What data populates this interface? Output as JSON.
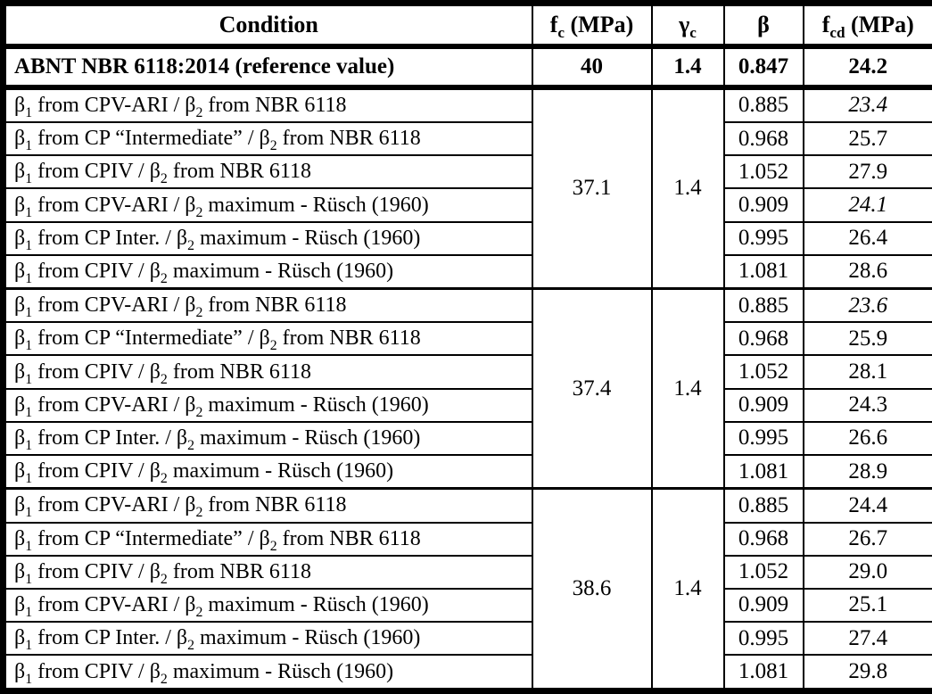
{
  "colors": {
    "border": "#000000",
    "background": "#ffffff",
    "text": "#000000"
  },
  "table": {
    "columns": [
      {
        "id": "condition",
        "parts": [
          {
            "t": "Condition"
          }
        ]
      },
      {
        "id": "fc",
        "parts": [
          {
            "t": "f"
          },
          {
            "sub": "c"
          },
          {
            "t": " (MPa)"
          }
        ]
      },
      {
        "id": "gamma_c",
        "parts": [
          {
            "t": "γ"
          },
          {
            "sub": "c"
          }
        ]
      },
      {
        "id": "beta",
        "parts": [
          {
            "t": "β"
          }
        ]
      },
      {
        "id": "fcd",
        "parts": [
          {
            "t": "f"
          },
          {
            "sub": "cd"
          },
          {
            "t": " (MPa)"
          }
        ]
      }
    ],
    "reference_row": {
      "condition": "ABNT NBR 6118:2014 (reference value)",
      "fc": "40",
      "gamma_c": "1.4",
      "beta": "0.847",
      "fcd": "24.2"
    },
    "groups": [
      {
        "fc": "37.1",
        "gamma_c": "1.4",
        "rows": [
          {
            "condition_parts": [
              {
                "t": "β"
              },
              {
                "sub": "1"
              },
              {
                "t": " from CPV-ARI / β"
              },
              {
                "sub": "2"
              },
              {
                "t": " from NBR 6118"
              }
            ],
            "beta": "0.885",
            "fcd": "23.4",
            "fcd_italic": true
          },
          {
            "condition_parts": [
              {
                "t": "β"
              },
              {
                "sub": "1"
              },
              {
                "t": " from CP “Intermediate” / β"
              },
              {
                "sub": "2"
              },
              {
                "t": " from NBR 6118"
              }
            ],
            "beta": "0.968",
            "fcd": "25.7",
            "fcd_italic": false
          },
          {
            "condition_parts": [
              {
                "t": "β"
              },
              {
                "sub": "1"
              },
              {
                "t": " from CPIV / β"
              },
              {
                "sub": "2"
              },
              {
                "t": " from NBR 6118"
              }
            ],
            "beta": "1.052",
            "fcd": "27.9",
            "fcd_italic": false
          },
          {
            "condition_parts": [
              {
                "t": "β"
              },
              {
                "sub": "1"
              },
              {
                "t": " from CPV-ARI / β"
              },
              {
                "sub": "2"
              },
              {
                "t": " maximum - Rüsch (1960)"
              }
            ],
            "beta": "0.909",
            "fcd": "24.1",
            "fcd_italic": true
          },
          {
            "condition_parts": [
              {
                "t": "β"
              },
              {
                "sub": "1"
              },
              {
                "t": " from CP Inter. / β"
              },
              {
                "sub": "2"
              },
              {
                "t": " maximum - Rüsch (1960)"
              }
            ],
            "beta": "0.995",
            "fcd": "26.4",
            "fcd_italic": false
          },
          {
            "condition_parts": [
              {
                "t": "β"
              },
              {
                "sub": "1"
              },
              {
                "t": " from CPIV / β"
              },
              {
                "sub": "2"
              },
              {
                "t": " maximum - Rüsch (1960)"
              }
            ],
            "beta": "1.081",
            "fcd": "28.6",
            "fcd_italic": false
          }
        ]
      },
      {
        "fc": "37.4",
        "gamma_c": "1.4",
        "rows": [
          {
            "condition_parts": [
              {
                "t": "β"
              },
              {
                "sub": "1"
              },
              {
                "t": " from CPV-ARI / β"
              },
              {
                "sub": "2"
              },
              {
                "t": " from NBR 6118"
              }
            ],
            "beta": "0.885",
            "fcd": "23.6",
            "fcd_italic": true
          },
          {
            "condition_parts": [
              {
                "t": "β"
              },
              {
                "sub": "1"
              },
              {
                "t": " from CP “Intermediate” / β"
              },
              {
                "sub": "2"
              },
              {
                "t": " from NBR 6118"
              }
            ],
            "beta": "0.968",
            "fcd": "25.9",
            "fcd_italic": false
          },
          {
            "condition_parts": [
              {
                "t": "β"
              },
              {
                "sub": "1"
              },
              {
                "t": " from CPIV / β"
              },
              {
                "sub": "2"
              },
              {
                "t": " from NBR 6118"
              }
            ],
            "beta": "1.052",
            "fcd": "28.1",
            "fcd_italic": false
          },
          {
            "condition_parts": [
              {
                "t": "β"
              },
              {
                "sub": "1"
              },
              {
                "t": " from CPV-ARI / β"
              },
              {
                "sub": "2"
              },
              {
                "t": " maximum - Rüsch (1960)"
              }
            ],
            "beta": "0.909",
            "fcd": "24.3",
            "fcd_italic": false
          },
          {
            "condition_parts": [
              {
                "t": "β"
              },
              {
                "sub": "1"
              },
              {
                "t": " from CP Inter. / β"
              },
              {
                "sub": "2"
              },
              {
                "t": " maximum - Rüsch (1960)"
              }
            ],
            "beta": "0.995",
            "fcd": "26.6",
            "fcd_italic": false
          },
          {
            "condition_parts": [
              {
                "t": "β"
              },
              {
                "sub": "1"
              },
              {
                "t": " from CPIV / β"
              },
              {
                "sub": "2"
              },
              {
                "t": " maximum - Rüsch (1960)"
              }
            ],
            "beta": "1.081",
            "fcd": "28.9",
            "fcd_italic": false
          }
        ]
      },
      {
        "fc": "38.6",
        "gamma_c": "1.4",
        "rows": [
          {
            "condition_parts": [
              {
                "t": "β"
              },
              {
                "sub": "1"
              },
              {
                "t": " from CPV-ARI / β"
              },
              {
                "sub": "2"
              },
              {
                "t": " from NBR 6118"
              }
            ],
            "beta": "0.885",
            "fcd": "24.4",
            "fcd_italic": false
          },
          {
            "condition_parts": [
              {
                "t": "β"
              },
              {
                "sub": "1"
              },
              {
                "t": " from CP “Intermediate” / β"
              },
              {
                "sub": "2"
              },
              {
                "t": " from NBR 6118"
              }
            ],
            "beta": "0.968",
            "fcd": "26.7",
            "fcd_italic": false
          },
          {
            "condition_parts": [
              {
                "t": "β"
              },
              {
                "sub": "1"
              },
              {
                "t": " from CPIV / β"
              },
              {
                "sub": "2"
              },
              {
                "t": " from NBR 6118"
              }
            ],
            "beta": "1.052",
            "fcd": "29.0",
            "fcd_italic": false
          },
          {
            "condition_parts": [
              {
                "t": "β"
              },
              {
                "sub": "1"
              },
              {
                "t": " from CPV-ARI / β"
              },
              {
                "sub": "2"
              },
              {
                "t": " maximum - Rüsch (1960)"
              }
            ],
            "beta": "0.909",
            "fcd": "25.1",
            "fcd_italic": false
          },
          {
            "condition_parts": [
              {
                "t": "β"
              },
              {
                "sub": "1"
              },
              {
                "t": " from CP Inter. / β"
              },
              {
                "sub": "2"
              },
              {
                "t": " maximum - Rüsch (1960)"
              }
            ],
            "beta": "0.995",
            "fcd": "27.4",
            "fcd_italic": false
          },
          {
            "condition_parts": [
              {
                "t": "β"
              },
              {
                "sub": "1"
              },
              {
                "t": " from CPIV / β"
              },
              {
                "sub": "2"
              },
              {
                "t": " maximum - Rüsch (1960)"
              }
            ],
            "beta": "1.081",
            "fcd": "29.8",
            "fcd_italic": false
          }
        ]
      }
    ]
  }
}
